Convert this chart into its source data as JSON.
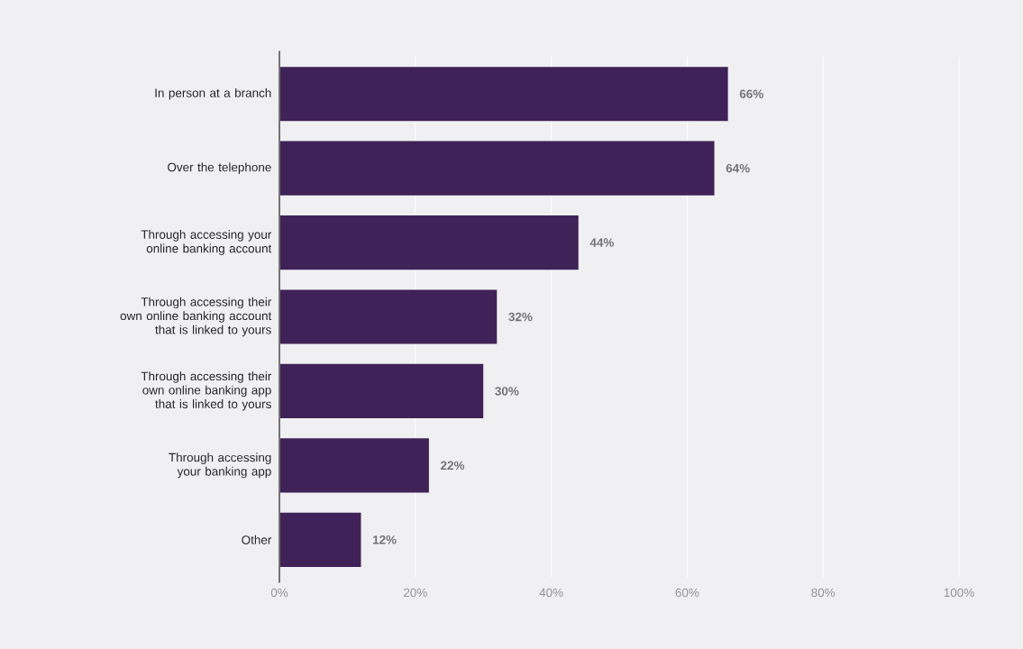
{
  "chart_data": {
    "type": "bar",
    "orientation": "horizontal",
    "categories": [
      "In person at a branch",
      "Over the telephone",
      "Through accessing your online banking account",
      "Through accessing their own online banking account that is linked to yours",
      "Through accessing their own online banking app that is linked to yours",
      "Through accessing your banking app",
      "Other"
    ],
    "values": [
      66,
      64,
      44,
      32,
      30,
      22,
      12
    ],
    "value_labels": [
      "66%",
      "64%",
      "44%",
      "32%",
      "30%",
      "22%",
      "12%"
    ],
    "color": "#3f2257",
    "xlim": [
      0,
      100
    ],
    "xticks": [
      {
        "value": 0,
        "label": "0%"
      },
      {
        "value": 20,
        "label": "20%"
      },
      {
        "value": 40,
        "label": "40%"
      },
      {
        "value": 60,
        "label": "60%"
      },
      {
        "value": 80,
        "label": "80%"
      },
      {
        "value": 100,
        "label": "100%"
      }
    ],
    "grid": "x"
  }
}
